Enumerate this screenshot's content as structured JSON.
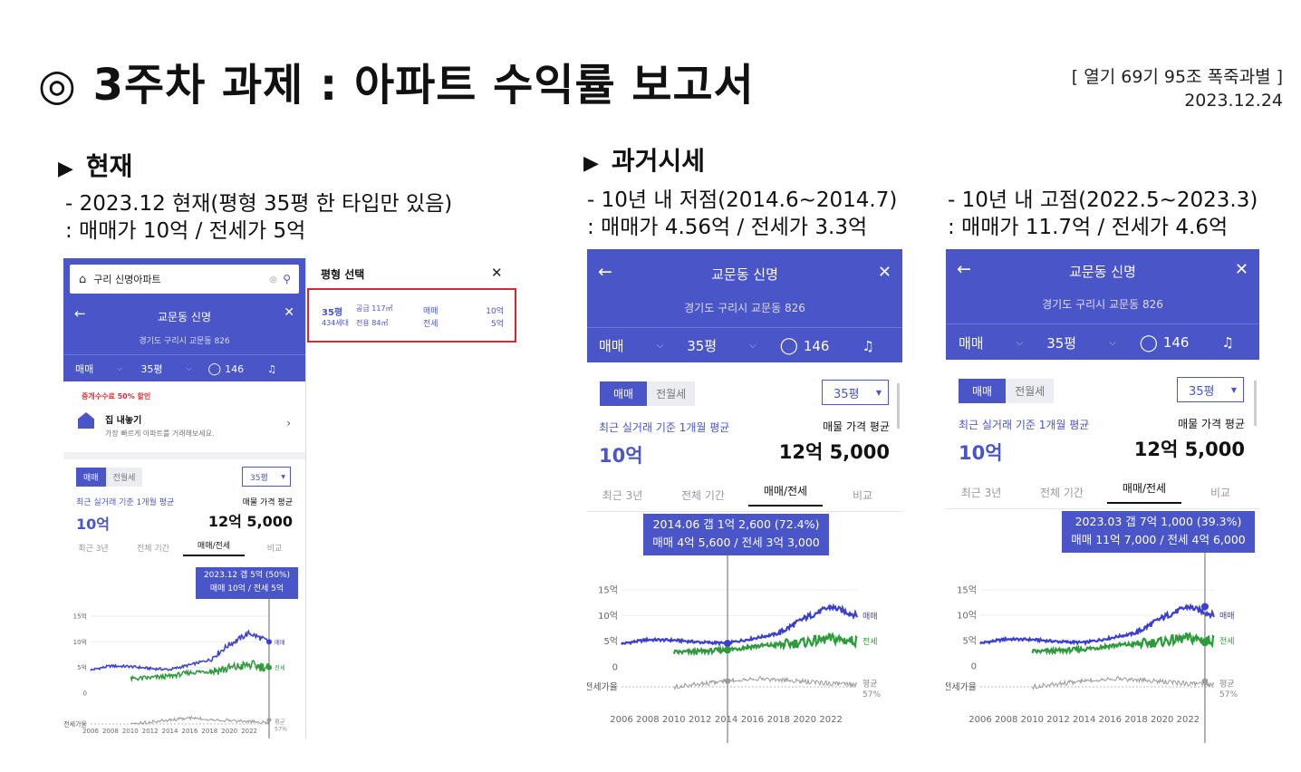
{
  "title": "◎ 3주차 과제 : 아파트 수익률 보고서",
  "meta": {
    "group": "[ 열기 69기 95조 폭죽과별 ]",
    "date": "2023.12.24"
  },
  "sections": {
    "current": {
      "heading": "현재",
      "line1": "- 2023.12 현재(평형 35평 한 타입만 있음)",
      "line2": ": 매매가 10억 / 전세가 5억"
    },
    "past": {
      "heading": "과거시세"
    },
    "low": {
      "line1": "- 10년 내 저점(2014.6~2014.7)",
      "line2": ": 매매가 4.56억 / 전세가 3.3억"
    },
    "high": {
      "line1": "- 10년 내 고점(2022.5~2023.3)",
      "line2": ": 매매가 11.7억 / 전세가 4.6억"
    }
  },
  "app": {
    "search_value": "구리 신명아파트",
    "apt_name": "교문동 신명",
    "address": "경기도 구리시 교문동 826",
    "filter_deal": "매매",
    "filter_size": "35평",
    "comment_count": "146",
    "promo_badge": "중개수수료 50% 할인",
    "promo_title": "집 내놓기",
    "promo_sub": "가장 빠르게 아파트를 거래해보세요.",
    "tab_deal": "매매",
    "tab_rent": "전월세",
    "size_select": "35평",
    "recent_label": "최근 실거래 기준 1개월 평균",
    "recent_value": "10억",
    "ask_label": "매물 가격 평균",
    "ask_value": "12억 5,000",
    "period_tabs": [
      "최근 3년",
      "전체 기간",
      "매매/전세",
      "비교"
    ],
    "yaxis": [
      "15억",
      "10억",
      "5억",
      "0"
    ],
    "ratio_label": "전세가율",
    "legend_deal": "매매",
    "legend_rent": "전세",
    "legend_avg": "평균",
    "legend_avg_pct": "57%",
    "years": [
      "2006",
      "2008",
      "2010",
      "2012",
      "2014",
      "2016",
      "2018",
      "2020",
      "2022"
    ]
  },
  "size_popup": {
    "title": "평형 선택",
    "size": "35평",
    "households": "434세대",
    "supply": "공급 117㎡",
    "exclusive": "전용 84㎡",
    "deal_label": "매매",
    "rent_label": "전세",
    "deal_price": "10억",
    "rent_price": "5억"
  },
  "tooltips": {
    "current": {
      "line1": "2023.12  갭 5억 (50%)",
      "line2": "매매 10억 / 전세 5억"
    },
    "low": {
      "line1": "2014.06  갭 1억 2,600 (72.4%)",
      "line2": "매매 4억 5,600 / 전세 3억 3,000"
    },
    "high": {
      "line1": "2023.03  갭 7억 1,000 (39.3%)",
      "line2": "매매 11억 7,000 / 전세 4억 6,000"
    }
  },
  "chart_data": [
    {
      "type": "line",
      "title": "",
      "x": [
        "2006",
        "2008",
        "2010",
        "2012",
        "2014",
        "2016",
        "2018",
        "2020",
        "2022",
        "2023.12"
      ],
      "series": [
        {
          "name": "매매",
          "values": [
            4.5,
            5.3,
            5.2,
            4.8,
            4.6,
            5.5,
            6.5,
            9.5,
            11.7,
            10
          ]
        },
        {
          "name": "전세",
          "values": [
            null,
            null,
            2.8,
            3.0,
            3.3,
            4.0,
            4.3,
            4.8,
            5.5,
            5
          ]
        }
      ],
      "ylabel": "",
      "ylim": [
        0,
        15
      ],
      "markers": [
        {
          "label": "2023.12",
          "deal": 10,
          "rent": 5,
          "gap": "50%"
        },
        {
          "label": "2014.06",
          "deal": 4.56,
          "rent": 3.3,
          "gap": "72.4%"
        },
        {
          "label": "2023.03",
          "deal": 11.7,
          "rent": 4.6,
          "gap": "39.3%"
        }
      ],
      "colors": {
        "deal": "#3a3fd0",
        "rent": "#2e9a3c",
        "ratio": "#9a9a9a"
      }
    }
  ]
}
